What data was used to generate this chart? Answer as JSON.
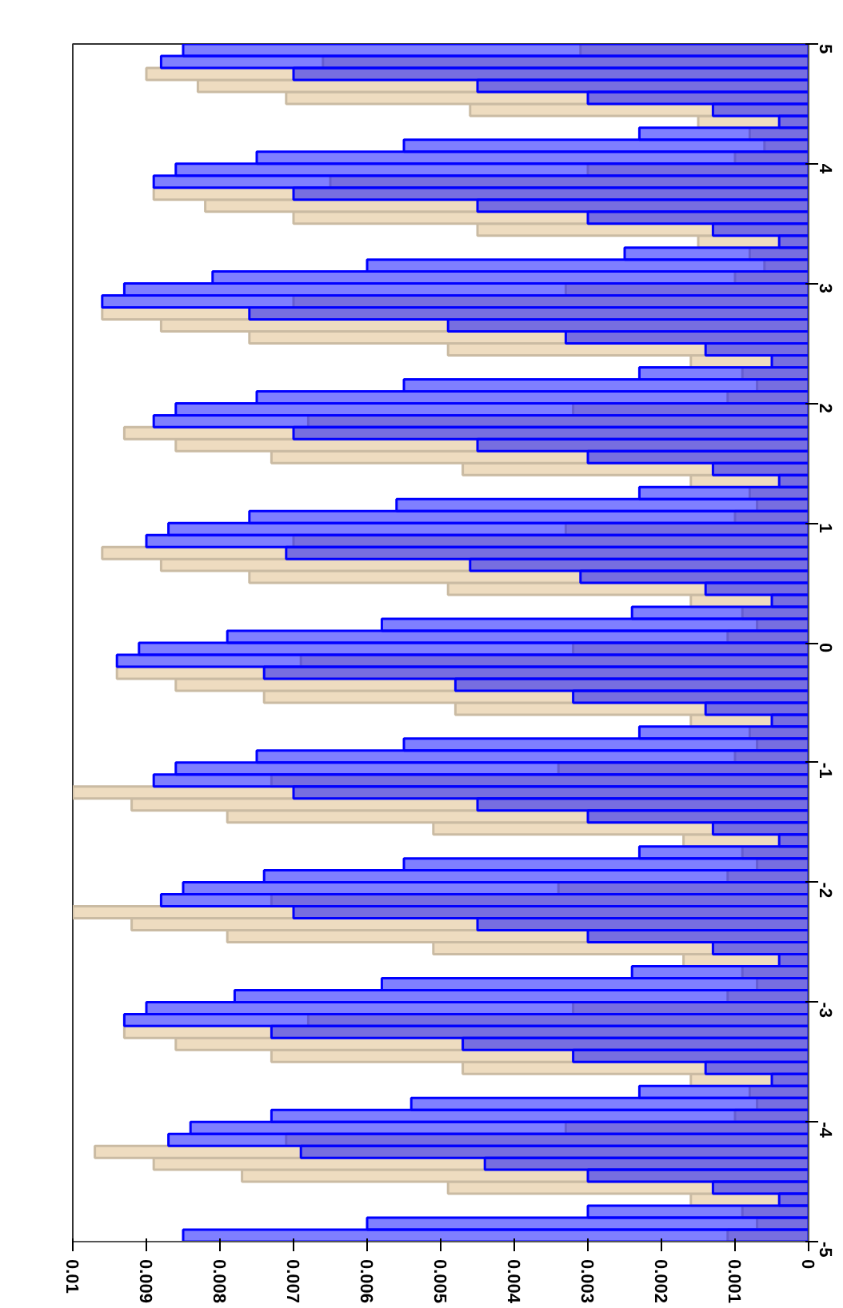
{
  "chart_data": {
    "type": "histogram",
    "orientation": "horizontal",
    "bins": [
      -5.0,
      -4.9,
      -4.8,
      -4.7,
      -4.6,
      -4.5,
      -4.4,
      -4.3,
      -4.2,
      -4.1,
      -4.0,
      -3.9,
      -3.8,
      -3.7,
      -3.6,
      -3.5,
      -3.4,
      -3.3,
      -3.2,
      -3.1,
      -3.0,
      -2.9,
      -2.8,
      -2.7,
      -2.6,
      -2.5,
      -2.4,
      -2.3,
      -2.2,
      -2.1,
      -2.0,
      -1.9,
      -1.8,
      -1.7,
      -1.6,
      -1.5,
      -1.4,
      -1.3,
      -1.2,
      -1.1,
      -1.0,
      -0.9,
      -0.8,
      -0.7,
      -0.6,
      -0.5,
      -0.4,
      -0.3,
      -0.2,
      -0.1,
      0.0,
      0.1,
      0.2,
      0.3,
      0.4,
      0.5,
      0.6,
      0.7,
      0.8,
      0.9,
      1.0,
      1.1,
      1.2,
      1.3,
      1.4,
      1.5,
      1.6,
      1.7,
      1.8,
      1.9,
      2.0,
      2.1,
      2.2,
      2.3,
      2.4,
      2.5,
      2.6,
      2.7,
      2.8,
      2.9,
      3.0,
      3.1,
      3.2,
      3.3,
      3.4,
      3.5,
      3.6,
      3.7,
      3.8,
      3.9,
      4.0,
      4.1,
      4.2,
      4.3,
      4.4,
      4.5,
      4.6,
      4.7,
      4.8,
      4.9,
      5.0
    ],
    "series": [
      {
        "color": "#0000ff",
        "values": [
          0.0085,
          0.006,
          0.003,
          0.0004,
          0.0013,
          0.003,
          0.0044,
          0.0069,
          0.0087,
          0.0084,
          0.0073,
          0.0054,
          0.0023,
          0.0005,
          0.0014,
          0.0032,
          0.0047,
          0.0073,
          0.0093,
          0.009,
          0.0078,
          0.0058,
          0.0024,
          0.0004,
          0.0013,
          0.003,
          0.0045,
          0.007,
          0.0088,
          0.0085,
          0.0074,
          0.0055,
          0.0023,
          0.0004,
          0.0013,
          0.003,
          0.0045,
          0.007,
          0.0089,
          0.0086,
          0.0075,
          0.0055,
          0.0023,
          0.0005,
          0.0014,
          0.0032,
          0.0048,
          0.0074,
          0.0094,
          0.0091,
          0.0079,
          0.0058,
          0.0024,
          0.0005,
          0.0014,
          0.0031,
          0.0046,
          0.0071,
          0.009,
          0.0087,
          0.0076,
          0.0056,
          0.0023,
          0.0004,
          0.0013,
          0.003,
          0.0045,
          0.007,
          0.0089,
          0.0086,
          0.0075,
          0.0055,
          0.0023,
          0.0005,
          0.0014,
          0.0033,
          0.0049,
          0.0076,
          0.0096,
          0.0093,
          0.0081,
          0.006,
          0.0025,
          0.0004,
          0.0013,
          0.003,
          0.0045,
          0.007,
          0.0089,
          0.0086,
          0.0075,
          0.0055,
          0.0023,
          0.0004,
          0.0013,
          0.003,
          0.0045,
          0.007,
          0.0088,
          0.0085
        ]
      },
      {
        "color": "#eedcc0",
        "values": [
          0.0011,
          0.0007,
          0.0009,
          0.0016,
          0.0049,
          0.0077,
          0.0089,
          0.0097,
          0.0071,
          0.0033,
          0.001,
          0.0007,
          0.0008,
          0.0016,
          0.0047,
          0.0073,
          0.0086,
          0.0093,
          0.0068,
          0.0032,
          0.0011,
          0.0007,
          0.0009,
          0.0017,
          0.0051,
          0.0079,
          0.0092,
          0.01,
          0.0073,
          0.0034,
          0.0011,
          0.0007,
          0.0009,
          0.0017,
          0.0051,
          0.0079,
          0.0092,
          0.01,
          0.0073,
          0.0034,
          0.001,
          0.0007,
          0.0008,
          0.0016,
          0.0048,
          0.0074,
          0.0086,
          0.0094,
          0.0069,
          0.0032,
          0.0011,
          0.0007,
          0.0009,
          0.0016,
          0.0049,
          0.0076,
          0.0088,
          0.0096,
          0.007,
          0.0033,
          0.001,
          0.0007,
          0.0008,
          0.0016,
          0.0047,
          0.0073,
          0.0086,
          0.0093,
          0.0068,
          0.0032,
          0.0011,
          0.0007,
          0.0009,
          0.0016,
          0.0049,
          0.0076,
          0.0088,
          0.0096,
          0.007,
          0.0033,
          0.001,
          0.0006,
          0.0008,
          0.0015,
          0.0045,
          0.007,
          0.0082,
          0.0089,
          0.0065,
          0.003,
          0.001,
          0.0006,
          0.0008,
          0.0015,
          0.0046,
          0.0071,
          0.0083,
          0.009,
          0.0066,
          0.0031
        ]
      }
    ],
    "xlim": [
      0.01,
      0
    ],
    "xticks": [
      0,
      0.001,
      0.002,
      0.003,
      0.004,
      0.005,
      0.006,
      0.007,
      0.008,
      0.009,
      0.01
    ],
    "ylim": [
      -5,
      5
    ],
    "yticks": [
      -5,
      -4,
      -3,
      -2,
      -1,
      0,
      1,
      2,
      3,
      4,
      5
    ]
  }
}
